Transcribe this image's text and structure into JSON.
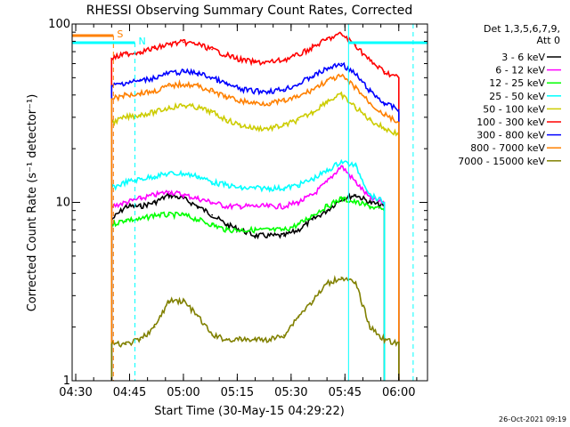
{
  "chart_data": {
    "type": "line",
    "title": "RHESSI Observing Summary Count Rates, Corrected",
    "xlabel": "Start Time (30-May-15 04:29:22)",
    "ylabel": "Corrected Count Rate (s⁻¹ detector⁻¹)",
    "y_scale": "log",
    "ylim": [
      1,
      100
    ],
    "xlim": [
      "04:29",
      "06:08"
    ],
    "x_tick_labels": [
      "04:30",
      "04:45",
      "05:00",
      "05:15",
      "05:30",
      "05:45",
      "06:00"
    ],
    "y_tick_labels": [
      "1",
      "10",
      "100"
    ],
    "legend_header": [
      "Det 1,3,5,6,7,9,",
      "Att 0"
    ],
    "legend_position": "right",
    "footer_timestamp": "26-Oct-2021 09:19",
    "markers": [
      {
        "label": "S",
        "color": "#ff8000",
        "start": "04:29",
        "end": "04:40"
      },
      {
        "label": "N",
        "color": "#00ffff",
        "start": "04:29",
        "end": "04:46"
      }
    ],
    "series": [
      {
        "name": "3 - 6 keV",
        "color": "#000000",
        "x": [
          "04:40",
          "04:44",
          "04:48",
          "04:52",
          "04:56",
          "05:00",
          "05:04",
          "05:08",
          "05:12",
          "05:16",
          "05:20",
          "05:24",
          "05:28",
          "05:32",
          "05:36",
          "05:40",
          "05:44",
          "05:48",
          "05:52",
          "05:56"
        ],
        "values": [
          8,
          9.5,
          9.5,
          10,
          11,
          10.5,
          9.5,
          8.5,
          7.5,
          7,
          6.5,
          6.5,
          6.5,
          7,
          8,
          9,
          10.5,
          11,
          10,
          9.5
        ]
      },
      {
        "name": "6 - 12 keV",
        "color": "#ff00ff",
        "x": [
          "04:40",
          "04:44",
          "04:48",
          "04:52",
          "04:56",
          "05:00",
          "05:04",
          "05:08",
          "05:12",
          "05:16",
          "05:20",
          "05:24",
          "05:28",
          "05:32",
          "05:36",
          "05:40",
          "05:44",
          "05:48",
          "05:52",
          "05:56"
        ],
        "values": [
          9.5,
          10,
          10.5,
          11,
          11.5,
          11,
          10.5,
          10,
          9.5,
          9.5,
          9.5,
          9.5,
          9.5,
          10,
          11,
          13,
          16,
          13,
          10.5,
          10
        ]
      },
      {
        "name": "12 - 25 keV",
        "color": "#00ff00",
        "x": [
          "04:40",
          "04:44",
          "04:48",
          "04:52",
          "04:56",
          "05:00",
          "05:04",
          "05:08",
          "05:12",
          "05:16",
          "05:20",
          "05:24",
          "05:28",
          "05:32",
          "05:36",
          "05:40",
          "05:44",
          "05:48",
          "05:52",
          "05:56"
        ],
        "values": [
          7.5,
          8,
          8,
          8.5,
          8.5,
          8.5,
          8,
          7.5,
          7,
          7,
          7,
          7,
          7,
          7.5,
          8.5,
          9.5,
          10.5,
          10,
          9.5,
          9
        ]
      },
      {
        "name": "25 - 50 keV",
        "color": "#00ffff",
        "x": [
          "04:40",
          "04:44",
          "04:48",
          "04:52",
          "04:56",
          "05:00",
          "05:04",
          "05:08",
          "05:12",
          "05:16",
          "05:20",
          "05:24",
          "05:28",
          "05:32",
          "05:36",
          "05:40",
          "05:44",
          "05:48",
          "05:52",
          "05:56"
        ],
        "values": [
          12,
          13,
          13.5,
          14,
          14.5,
          14.5,
          14,
          13,
          12.5,
          12,
          12,
          12,
          12,
          12.5,
          13.5,
          15,
          17,
          16,
          11,
          10
        ]
      },
      {
        "name": "50 - 100 keV",
        "color": "#cccc00",
        "x": [
          "04:40",
          "04:44",
          "04:48",
          "04:52",
          "04:56",
          "05:00",
          "05:04",
          "05:08",
          "05:12",
          "05:16",
          "05:20",
          "05:24",
          "05:28",
          "05:32",
          "05:36",
          "05:40",
          "05:44",
          "05:48",
          "05:52",
          "05:56",
          "06:00"
        ],
        "values": [
          28,
          30,
          31,
          32,
          34,
          35,
          34,
          32,
          29,
          27,
          26,
          26,
          27,
          29,
          32,
          37,
          40,
          34,
          29,
          26,
          24
        ]
      },
      {
        "name": "100 - 300 keV",
        "color": "#ff0000",
        "x": [
          "04:40",
          "04:44",
          "04:48",
          "04:52",
          "04:56",
          "05:00",
          "05:04",
          "05:08",
          "05:12",
          "05:16",
          "05:20",
          "05:24",
          "05:28",
          "05:32",
          "05:36",
          "05:40",
          "05:44",
          "05:48",
          "05:52",
          "05:56",
          "06:00"
        ],
        "values": [
          64,
          68,
          70,
          73,
          77,
          79,
          77,
          72,
          67,
          63,
          61,
          61,
          63,
          67,
          74,
          82,
          88,
          76,
          62,
          54,
          50
        ]
      },
      {
        "name": "300 - 800 keV",
        "color": "#0000ff",
        "x": [
          "04:40",
          "04:44",
          "04:48",
          "04:52",
          "04:56",
          "05:00",
          "05:04",
          "05:08",
          "05:12",
          "05:16",
          "05:20",
          "05:24",
          "05:28",
          "05:32",
          "05:36",
          "05:40",
          "05:44",
          "05:48",
          "05:52",
          "05:56",
          "06:00"
        ],
        "values": [
          45,
          47,
          48,
          50,
          53,
          54,
          53,
          50,
          46,
          43,
          42,
          42,
          43,
          46,
          51,
          56,
          60,
          52,
          42,
          36,
          33
        ]
      },
      {
        "name": "800 - 7000 keV",
        "color": "#ff8000",
        "x": [
          "04:40",
          "04:44",
          "04:48",
          "04:52",
          "04:56",
          "05:00",
          "05:04",
          "05:08",
          "05:12",
          "05:16",
          "05:20",
          "05:24",
          "05:28",
          "05:32",
          "05:36",
          "05:40",
          "05:44",
          "05:48",
          "05:52",
          "05:56",
          "06:00"
        ],
        "values": [
          38,
          40,
          41,
          42,
          45,
          46,
          45,
          42,
          39,
          37,
          36,
          36,
          37,
          39,
          43,
          48,
          51,
          44,
          36,
          31,
          28
        ]
      },
      {
        "name": "7000 - 15000 keV",
        "color": "#808000",
        "x": [
          "04:40",
          "04:44",
          "04:48",
          "04:52",
          "04:56",
          "05:00",
          "05:04",
          "05:08",
          "05:12",
          "05:16",
          "05:20",
          "05:24",
          "05:28",
          "05:32",
          "05:36",
          "05:40",
          "05:44",
          "05:48",
          "05:52",
          "05:56",
          "06:00"
        ],
        "values": [
          1.6,
          1.6,
          1.7,
          2,
          2.8,
          2.8,
          2.3,
          1.8,
          1.7,
          1.7,
          1.7,
          1.7,
          1.8,
          2.3,
          2.8,
          3.5,
          3.8,
          3.5,
          2,
          1.7,
          1.6
        ]
      }
    ]
  }
}
